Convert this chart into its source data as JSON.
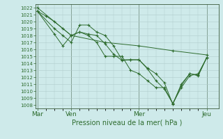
{
  "xlabel": "Pression niveau de la mer( hPa )",
  "bg_color": "#ceeaea",
  "grid_color": "#b0cccc",
  "line_color": "#2d6b2d",
  "vline_color": "#3a5a3a",
  "ylim": [
    1007.5,
    1022.5
  ],
  "yticks": [
    1008,
    1009,
    1010,
    1011,
    1012,
    1013,
    1014,
    1015,
    1016,
    1017,
    1018,
    1019,
    1020,
    1021,
    1022
  ],
  "xlim": [
    -0.05,
    5.35
  ],
  "day_positions": [
    0.0,
    1.0,
    3.0,
    5.0
  ],
  "day_labels": [
    "Mar",
    "Ven",
    "Mer",
    "Jeu"
  ],
  "series": [
    [
      0.0,
      1021.5,
      0.25,
      1020.8,
      0.5,
      1020.0,
      0.75,
      1019.0,
      1.0,
      1018.0,
      1.25,
      1018.5,
      1.5,
      1018.2,
      1.75,
      1018.0,
      2.0,
      1016.8,
      2.25,
      1015.3,
      2.5,
      1014.4,
      2.75,
      1014.5,
      3.0,
      1014.5,
      3.25,
      1013.2,
      3.5,
      1011.5,
      3.75,
      1010.3,
      4.0,
      1008.2,
      4.25,
      1010.8,
      4.5,
      1012.5,
      4.75,
      1012.3,
      5.0,
      1014.8
    ],
    [
      0.0,
      1022.0,
      1.0,
      1018.0,
      2.0,
      1017.0,
      3.0,
      1016.5,
      4.0,
      1015.8,
      5.0,
      1015.2
    ],
    [
      0.0,
      1021.5,
      0.5,
      1019.0,
      0.75,
      1018.0,
      1.0,
      1017.0,
      1.25,
      1019.5,
      1.5,
      1019.5,
      1.75,
      1018.5,
      2.0,
      1018.0,
      2.25,
      1016.5,
      2.5,
      1014.5,
      2.75,
      1014.5,
      3.0,
      1014.5,
      3.25,
      1013.3,
      3.5,
      1012.5,
      3.75,
      1011.2,
      4.0,
      1008.1,
      4.25,
      1011.0,
      4.5,
      1012.5,
      4.75,
      1012.2,
      5.0,
      1014.8
    ],
    [
      0.0,
      1021.5,
      0.5,
      1018.2,
      0.75,
      1016.5,
      1.0,
      1018.0,
      1.25,
      1018.5,
      1.5,
      1018.0,
      1.75,
      1017.0,
      2.0,
      1015.0,
      2.25,
      1015.0,
      2.5,
      1015.0,
      2.75,
      1013.0,
      3.0,
      1012.5,
      3.25,
      1011.5,
      3.5,
      1010.5,
      3.75,
      1010.5,
      4.0,
      1008.2,
      4.25,
      1010.5,
      4.5,
      1012.2,
      4.75,
      1012.5,
      5.0,
      1014.8
    ]
  ],
  "ytick_fontsize": 5,
  "xtick_fontsize": 6.5,
  "xlabel_fontsize": 7
}
